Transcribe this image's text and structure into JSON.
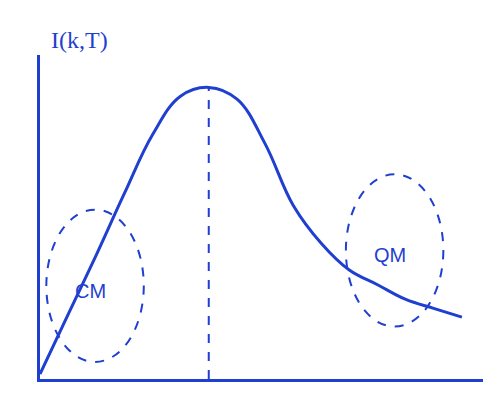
{
  "chart_data": {
    "type": "line",
    "y_label": "I(k,T)",
    "x": [
      0,
      0.67,
      1.33,
      2,
      2.67,
      3.33,
      4,
      4.67,
      5.33,
      6,
      6.67,
      7.33,
      8,
      8.67,
      9.33,
      10
    ],
    "values": [
      0.17,
      2.2,
      4.2,
      6.3,
      8.3,
      9.6,
      9.9,
      9.5,
      8.0,
      5.9,
      4.6,
      3.7,
      3.2,
      2.7,
      2.4,
      2.1
    ],
    "color": "#1f3fd0",
    "xlim": [
      0,
      10.5
    ],
    "ylim": [
      0,
      11
    ],
    "tick_labels": false,
    "grid": false,
    "annotations": [
      {
        "text": "CM",
        "x": 1.2,
        "y": 3.0
      },
      {
        "text": "QM",
        "x": 8.3,
        "y": 4.2
      }
    ]
  }
}
